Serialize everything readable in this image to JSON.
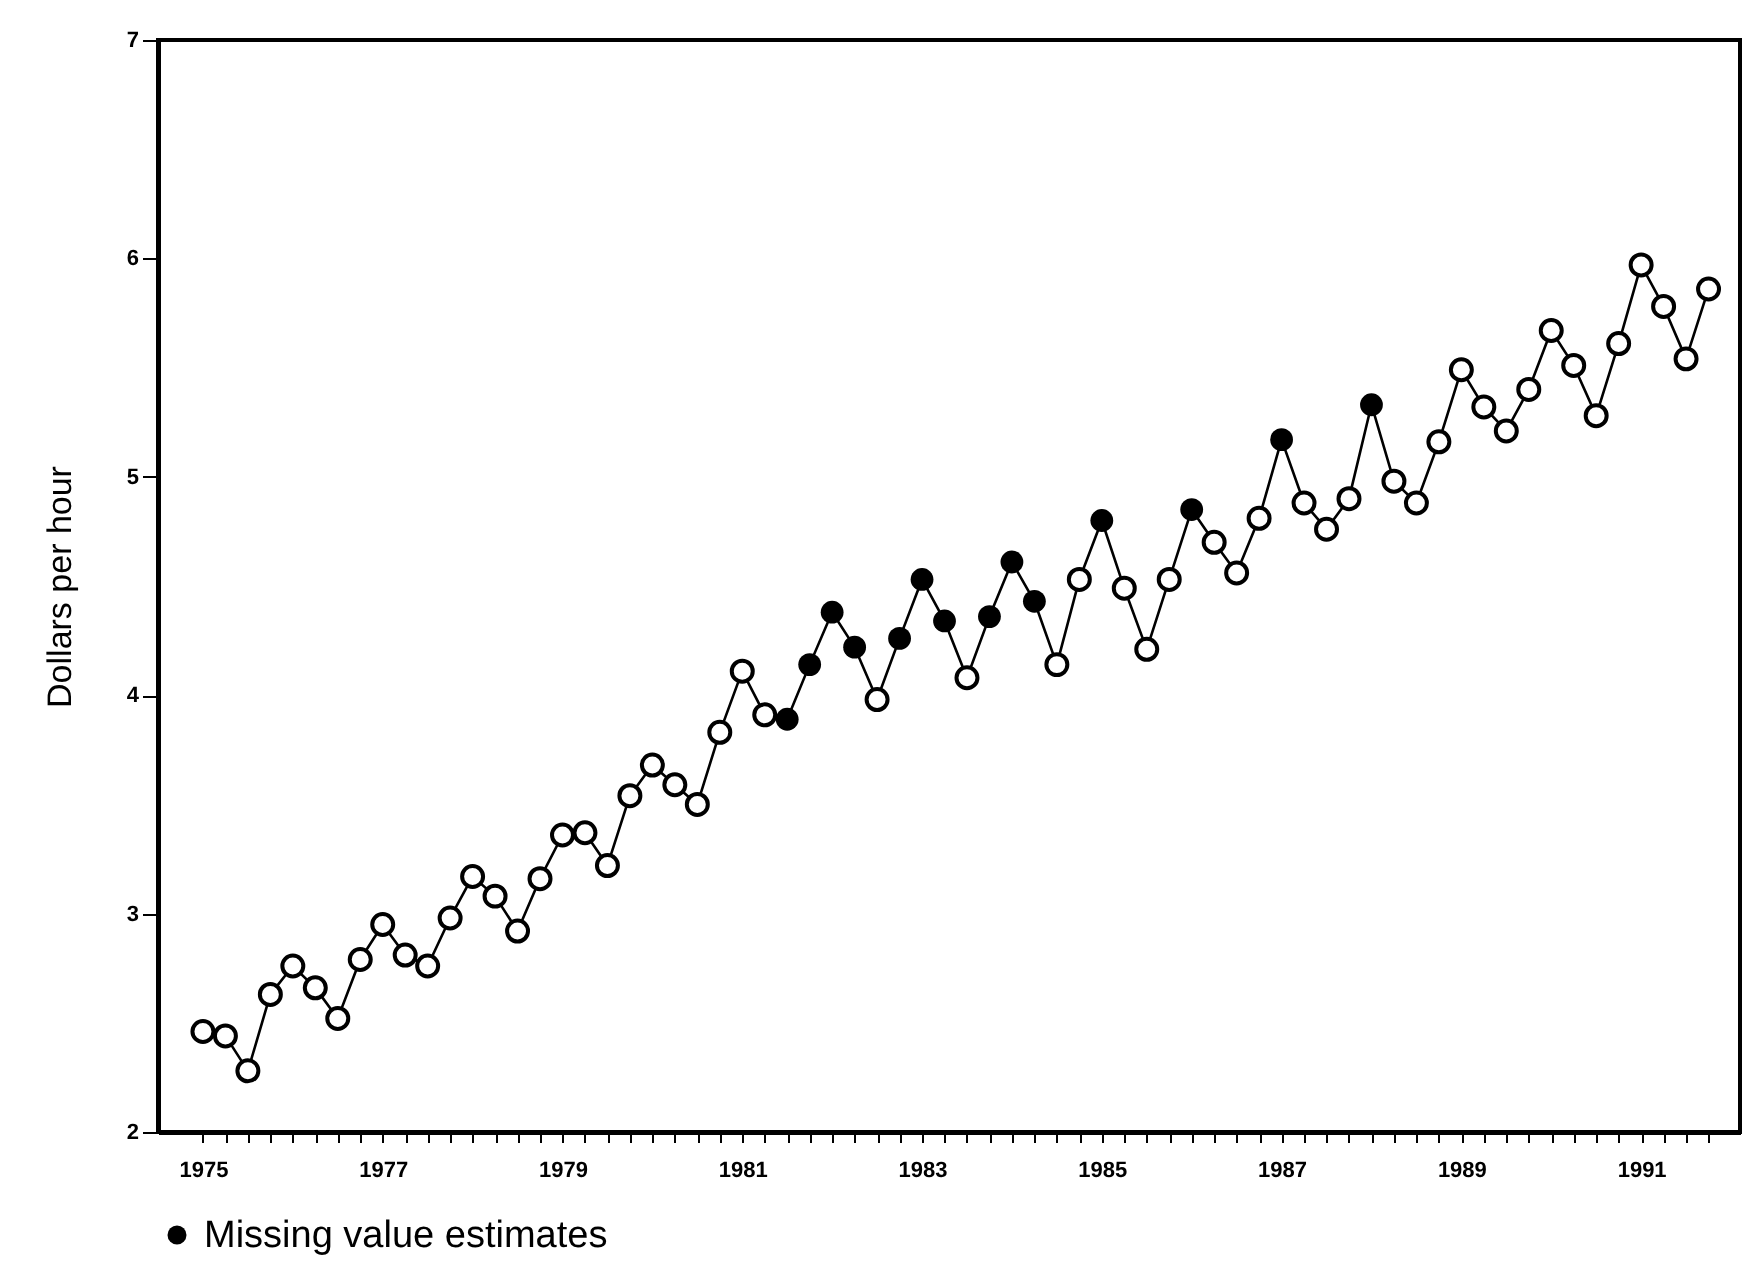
{
  "chart_data": {
    "type": "line",
    "ylabel": "Dollars per hour",
    "x": [
      1975,
      1975.25,
      1975.5,
      1975.75,
      1976,
      1976.25,
      1976.5,
      1976.75,
      1977,
      1977.25,
      1977.5,
      1977.75,
      1978,
      1978.25,
      1978.5,
      1978.75,
      1979,
      1979.25,
      1979.5,
      1979.75,
      1980,
      1980.25,
      1980.5,
      1980.75,
      1981,
      1981.25,
      1981.5,
      1981.75,
      1982,
      1982.25,
      1982.5,
      1982.75,
      1983,
      1983.25,
      1983.5,
      1983.75,
      1984,
      1984.25,
      1984.5,
      1984.75,
      1985,
      1985.25,
      1985.5,
      1985.75,
      1986,
      1986.25,
      1986.5,
      1986.75,
      1987,
      1987.25,
      1987.5,
      1987.75,
      1988,
      1988.25,
      1988.5,
      1988.75,
      1989,
      1989.25,
      1989.5,
      1989.75,
      1990,
      1990.25,
      1990.5,
      1990.75,
      1991,
      1991.25,
      1991.5,
      1991.75
    ],
    "series": [
      {
        "color": "#000000",
        "marker": "circle",
        "values": [
          2.46,
          2.44,
          2.28,
          2.63,
          2.76,
          2.66,
          2.52,
          2.79,
          2.95,
          2.81,
          2.76,
          2.98,
          3.17,
          3.08,
          2.92,
          3.16,
          3.36,
          3.37,
          3.22,
          3.54,
          3.68,
          3.59,
          3.5,
          3.83,
          4.11,
          3.91,
          3.89,
          4.14,
          4.38,
          4.22,
          3.98,
          4.26,
          4.53,
          4.34,
          4.08,
          4.36,
          4.61,
          4.43,
          4.14,
          4.53,
          4.8,
          4.49,
          4.21,
          4.53,
          4.85,
          4.7,
          4.56,
          4.81,
          5.17,
          4.88,
          4.76,
          4.9,
          5.33,
          4.98,
          4.88,
          5.16,
          5.49,
          5.32,
          5.21,
          5.4,
          5.67,
          5.51,
          5.28,
          5.61,
          5.97,
          5.78,
          5.54,
          5.86
        ]
      },
      {
        "type": "scatter",
        "name": "Missing value estimates",
        "color": "#000000",
        "x": [
          1981.5,
          1981.75,
          1982,
          1982.25,
          1982.75,
          1983,
          1983.25,
          1983.75,
          1984,
          1984.25,
          1985,
          1986,
          1987,
          1988
        ],
        "values": [
          3.89,
          4.14,
          4.38,
          4.22,
          4.26,
          4.53,
          4.34,
          4.36,
          4.61,
          4.43,
          4.8,
          4.85,
          5.17,
          5.33
        ]
      }
    ],
    "xlim": [
      1974.5,
      1992.1
    ],
    "xticks": [
      1975,
      {
        "value": 1975.25,
        "label": null
      },
      {
        "value": 1975.5,
        "label": null
      },
      {
        "value": 1975.75,
        "label": null
      },
      {
        "value": 1976,
        "label": null
      },
      {
        "value": 1976.25,
        "label": null
      },
      {
        "value": 1976.5,
        "label": null
      },
      {
        "value": 1976.75,
        "label": null
      },
      1977,
      {
        "value": 1977.25,
        "label": null
      },
      {
        "value": 1977.5,
        "label": null
      },
      {
        "value": 1977.75,
        "label": null
      },
      {
        "value": 1978,
        "label": null
      },
      {
        "value": 1978.25,
        "label": null
      },
      {
        "value": 1978.5,
        "label": null
      },
      {
        "value": 1978.75,
        "label": null
      },
      1979,
      {
        "value": 1979.25,
        "label": null
      },
      {
        "value": 1979.5,
        "label": null
      },
      {
        "value": 1979.75,
        "label": null
      },
      {
        "value": 1980,
        "label": null
      },
      {
        "value": 1980.25,
        "label": null
      },
      {
        "value": 1980.5,
        "label": null
      },
      {
        "value": 1980.75,
        "label": null
      },
      1981,
      {
        "value": 1981.25,
        "label": null
      },
      {
        "value": 1981.5,
        "label": null
      },
      {
        "value": 1981.75,
        "label": null
      },
      {
        "value": 1982,
        "label": null
      },
      {
        "value": 1982.25,
        "label": null
      },
      {
        "value": 1982.5,
        "label": null
      },
      {
        "value": 1982.75,
        "label": null
      },
      1983,
      {
        "value": 1983.25,
        "label": null
      },
      {
        "value": 1983.5,
        "label": null
      },
      {
        "value": 1983.75,
        "label": null
      },
      {
        "value": 1984,
        "label": null
      },
      {
        "value": 1984.25,
        "label": null
      },
      {
        "value": 1984.5,
        "label": null
      },
      {
        "value": 1984.75,
        "label": null
      },
      1985,
      {
        "value": 1985.25,
        "label": null
      },
      {
        "value": 1985.5,
        "label": null
      },
      {
        "value": 1985.75,
        "label": null
      },
      {
        "value": 1986,
        "label": null
      },
      {
        "value": 1986.25,
        "label": null
      },
      {
        "value": 1986.5,
        "label": null
      },
      {
        "value": 1986.75,
        "label": null
      },
      1987,
      {
        "value": 1987.25,
        "label": null
      },
      {
        "value": 1987.5,
        "label": null
      },
      {
        "value": 1987.75,
        "label": null
      },
      {
        "value": 1988,
        "label": null
      },
      {
        "value": 1988.25,
        "label": null
      },
      {
        "value": 1988.5,
        "label": null
      },
      {
        "value": 1988.75,
        "label": null
      },
      1989,
      {
        "value": 1989.25,
        "label": null
      },
      {
        "value": 1989.5,
        "label": null
      },
      {
        "value": 1989.75,
        "label": null
      },
      {
        "value": 1990,
        "label": null
      },
      {
        "value": 1990.25,
        "label": null
      },
      {
        "value": 1990.5,
        "label": null
      },
      {
        "value": 1990.75,
        "label": null
      },
      1991,
      {
        "value": 1991.25,
        "label": null
      },
      {
        "value": 1991.5,
        "label": null
      },
      {
        "value": 1991.75,
        "label": null
      }
    ],
    "ylim": [
      2,
      7
    ],
    "yticks": [
      2,
      3,
      4,
      5,
      6,
      7
    ],
    "legend": "bottom",
    "line_style": "solid"
  }
}
